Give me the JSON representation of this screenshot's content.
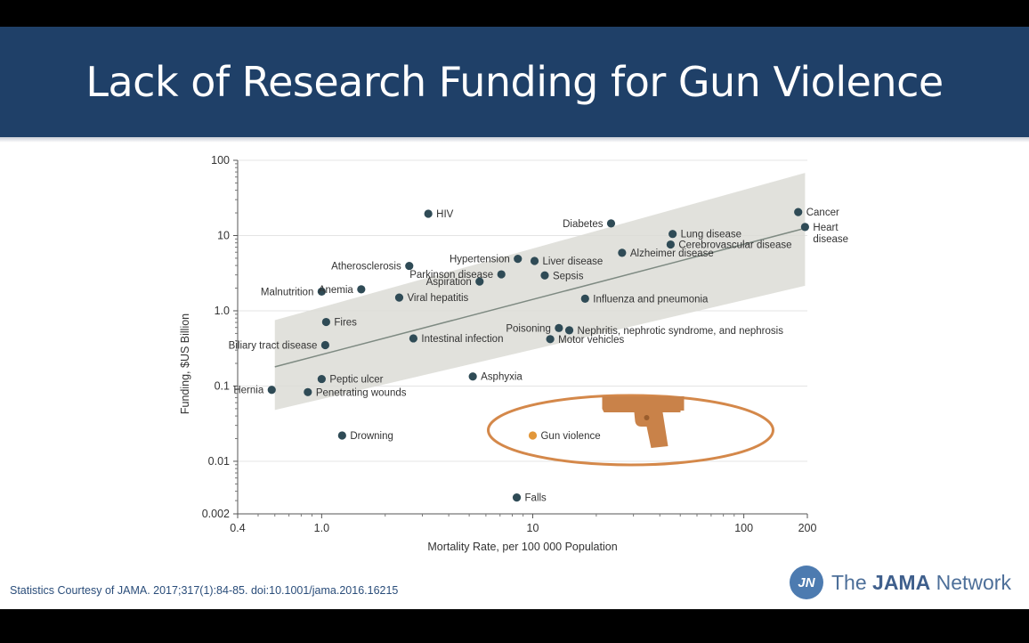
{
  "slide": {
    "title": "Lack of Research Funding for Gun Violence",
    "credit": "Statistics Courtesy of JAMA. 2017;317(1):84-85. doi:10.1001/jama.2016.16215",
    "brand_prefix": "The",
    "brand_bold": "JAMA",
    "brand_suffix": "Network",
    "brand_logo": "JN"
  },
  "colors": {
    "banner": "#1f4068",
    "point": "#2f4b56",
    "highlight": "#e2973a",
    "ellipse": "#d4884a",
    "band": "#dcdcd6",
    "trend": "#7e8a82",
    "gun": "#c98249"
  },
  "chart_data": {
    "type": "scatter",
    "x_scale": "log",
    "y_scale": "log",
    "xlabel": "Mortality Rate, per 100 000 Population",
    "ylabel": "Funding, $US Billion",
    "xlim": [
      0.4,
      200
    ],
    "ylim": [
      0.002,
      100
    ],
    "x_ticks": [
      {
        "value": 0.4,
        "label": "0.4"
      },
      {
        "value": 1,
        "label": "1.0"
      },
      {
        "value": 10,
        "label": "10"
      },
      {
        "value": 100,
        "label": "100"
      },
      {
        "value": 200,
        "label": "200"
      }
    ],
    "y_ticks": [
      {
        "value": 0.002,
        "label": "0.002"
      },
      {
        "value": 0.01,
        "label": "0.01"
      },
      {
        "value": 0.1,
        "label": "0.1"
      },
      {
        "value": 1,
        "label": "1.0"
      },
      {
        "value": 10,
        "label": "10"
      },
      {
        "value": 100,
        "label": "100"
      }
    ],
    "grid": "horizontal",
    "trend_line": {
      "x": [
        0.6,
        195
      ],
      "y": [
        0.18,
        12.5
      ]
    },
    "confidence_band": {
      "x": [
        0.6,
        195
      ],
      "upper": [
        0.75,
        68
      ],
      "lower": [
        0.048,
        2.15
      ]
    },
    "points": [
      {
        "label": "HIV",
        "x": 3.2,
        "y": 19.5,
        "align": "right"
      },
      {
        "label": "Diabetes",
        "x": 23.5,
        "y": 14.5,
        "align": "left"
      },
      {
        "label": "Cancer",
        "x": 181,
        "y": 20.5,
        "align": "right"
      },
      {
        "label": "Heart disease",
        "x": 195,
        "y": 13,
        "align": "right"
      },
      {
        "label": "Lung disease",
        "x": 46,
        "y": 10.5,
        "align": "right"
      },
      {
        "label": "Cerebrovascular disease",
        "x": 45,
        "y": 7.6,
        "align": "right"
      },
      {
        "label": "Alzheimer disease",
        "x": 26.5,
        "y": 5.9,
        "align": "right"
      },
      {
        "label": "Hypertension",
        "x": 8.5,
        "y": 4.9,
        "align": "left"
      },
      {
        "label": "Liver disease",
        "x": 10.2,
        "y": 4.6,
        "align": "right"
      },
      {
        "label": "Atherosclerosis",
        "x": 2.6,
        "y": 3.95,
        "align": "left"
      },
      {
        "label": "Parkinson disease",
        "x": 7.1,
        "y": 3.05,
        "align": "left"
      },
      {
        "label": "Sepsis",
        "x": 11.4,
        "y": 2.95,
        "align": "right"
      },
      {
        "label": "Aspiration",
        "x": 5.6,
        "y": 2.45,
        "align": "left"
      },
      {
        "label": "Malnutrition",
        "x": 1.0,
        "y": 1.8,
        "align": "left"
      },
      {
        "label": "Anemia",
        "x": 1.54,
        "y": 1.93,
        "align": "left"
      },
      {
        "label": "Viral hepatitis",
        "x": 2.33,
        "y": 1.5,
        "align": "right"
      },
      {
        "label": "Influenza and pneumonia",
        "x": 17.7,
        "y": 1.45,
        "align": "right"
      },
      {
        "label": "Fires",
        "x": 1.05,
        "y": 0.71,
        "align": "right"
      },
      {
        "label": "Poisoning",
        "x": 13.3,
        "y": 0.59,
        "align": "left"
      },
      {
        "label": "Nephritis, nephrotic syndrome, and nephrosis",
        "x": 14.9,
        "y": 0.55,
        "align": "right"
      },
      {
        "label": "Motor vehicles",
        "x": 12.1,
        "y": 0.42,
        "align": "right"
      },
      {
        "label": "Intestinal infection",
        "x": 2.72,
        "y": 0.43,
        "align": "right"
      },
      {
        "label": "Biliary tract disease",
        "x": 1.04,
        "y": 0.35,
        "align": "left"
      },
      {
        "label": "Asphyxia",
        "x": 5.2,
        "y": 0.134,
        "align": "right"
      },
      {
        "label": "Peptic ulcer",
        "x": 1.0,
        "y": 0.124,
        "align": "right"
      },
      {
        "label": "Hernia",
        "x": 0.58,
        "y": 0.089,
        "align": "left"
      },
      {
        "label": "Penetrating wounds",
        "x": 0.86,
        "y": 0.083,
        "align": "right"
      },
      {
        "label": "Drowning",
        "x": 1.25,
        "y": 0.022,
        "align": "right"
      },
      {
        "label": "Gun violence",
        "x": 10,
        "y": 0.022,
        "align": "right",
        "highlight": true
      },
      {
        "label": "Falls",
        "x": 8.4,
        "y": 0.0033,
        "align": "right"
      }
    ]
  }
}
